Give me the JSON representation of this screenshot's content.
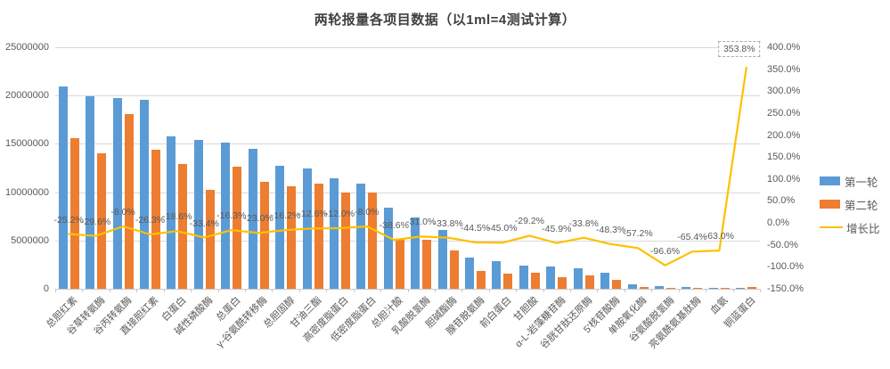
{
  "title": "两轮报量各项目数据（以1ml=4测试计算）",
  "legend": [
    {
      "label": "第一轮",
      "swatch": "bar",
      "color": "#5b9bd5"
    },
    {
      "label": "第二轮",
      "swatch": "bar",
      "color": "#ed7d31"
    },
    {
      "label": "增长比",
      "swatch": "line",
      "color": "#ffc000"
    }
  ],
  "colors": {
    "series1": "#5b9bd5",
    "series2": "#ed7d31",
    "line": "#ffc000",
    "gridline": "#d9d9d9",
    "axis_text": "#595959",
    "title_text": "#404040"
  },
  "chart_data": {
    "type": "bar+line",
    "title": "两轮报量各项目数据（以1ml=4测试计算）",
    "categories": [
      "总胆红素",
      "谷草转氨酶",
      "谷丙转氨酶",
      "直接胆红素",
      "白蛋白",
      "碱性磷酸酶",
      "总蛋白",
      "γ-谷氨酰转移酶",
      "总胆固醇",
      "甘油三酯",
      "高密度脂蛋白",
      "低密度脂蛋白",
      "总胆汁酸",
      "乳酸脱氢酶",
      "胆碱酯酶",
      "腺苷脱氨酶",
      "前白蛋白",
      "甘胆酸",
      "α-L-岩藻糖苷酶",
      "谷胱甘肽还原酶",
      "5'核苷酸酶",
      "单胺氧化酶",
      "谷氨酸脱氢酶",
      "亮氨酰氨基肽酶",
      "血氨",
      "铜蓝蛋白"
    ],
    "series": [
      {
        "name": "第一轮",
        "type": "bar",
        "axis": "left",
        "color": "#5b9bd5",
        "values": [
          20900000,
          19900000,
          19700000,
          19600000,
          15800000,
          15400000,
          15100000,
          14500000,
          12700000,
          12500000,
          11400000,
          10900000,
          8400000,
          7400000,
          6100000,
          3200000,
          2900000,
          2400000,
          2300000,
          2100000,
          1700000,
          450000,
          250000,
          150000,
          120000,
          40000
        ]
      },
      {
        "name": "第二轮",
        "type": "bar",
        "axis": "left",
        "color": "#ed7d31",
        "values": [
          15600000,
          14000000,
          18100000,
          14400000,
          12900000,
          10200000,
          12600000,
          11100000,
          10600000,
          10900000,
          10000000,
          10000000,
          5200000,
          5100000,
          4000000,
          1800000,
          1600000,
          1700000,
          1200000,
          1400000,
          880000,
          190000,
          8500,
          52000,
          44000,
          180000
        ]
      },
      {
        "name": "增长比",
        "type": "line",
        "axis": "right",
        "color": "#ffc000",
        "values_percent": [
          -25.2,
          -29.6,
          -8.0,
          -26.3,
          -18.6,
          -33.4,
          -16.3,
          -23.0,
          -16.2,
          -12.6,
          -12.0,
          -8.0,
          -38.6,
          -31.0,
          -33.8,
          -44.5,
          -45.0,
          -29.2,
          -45.9,
          -33.8,
          -48.3,
          -57.2,
          -96.6,
          -65.4,
          -63.0,
          353.8
        ],
        "data_labels": [
          "-25.2%",
          "-29.6%",
          "-8.0%",
          "-26.3%",
          "-18.6%",
          "-33.4%",
          "-16.3%",
          "-23.0%",
          "-16.2%",
          "-12.6%",
          "-12.0%",
          "-8.0%",
          "-38.6%",
          "-31.0%",
          "-33.8%",
          "-44.5%",
          "-45.0%",
          "-29.2%",
          "-45.9%",
          "-33.8%",
          "-48.3%",
          "-57.2%",
          "-96.6%",
          "-65.4%",
          "-63.0%",
          "353.8%"
        ],
        "highlighted_label_index": 25
      }
    ],
    "axis_left": {
      "min": 0,
      "max": 25000000,
      "step": 5000000,
      "ticks": [
        "25000000",
        "20000000",
        "15000000",
        "10000000",
        "5000000",
        "0"
      ]
    },
    "axis_right": {
      "min": -150,
      "max": 400,
      "step": 50,
      "ticks": [
        "400.0%",
        "350.0%",
        "300.0%",
        "250.0%",
        "200.0%",
        "150.0%",
        "100.0%",
        "50.0%",
        "0.0%",
        "-50.0%",
        "-100.0%",
        "-150.0%"
      ]
    },
    "grid": true,
    "legend_position": "right"
  }
}
